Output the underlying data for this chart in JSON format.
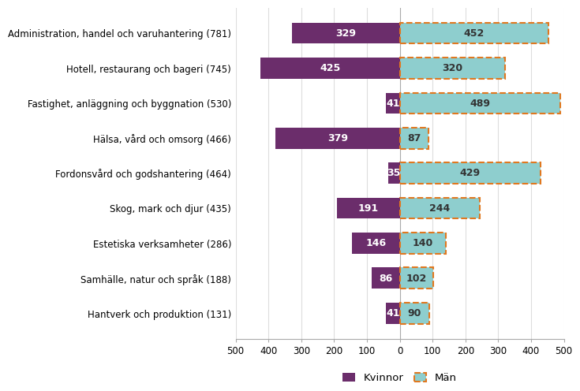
{
  "categories": [
    "Administration, handel och varuhantering (781)",
    "Hotell, restaurang och bageri (745)",
    "Fastighet, anläggning och byggnation (530)",
    "Hälsa, vård och omsorg (466)",
    "Fordonsvård och godshantering (464)",
    "Skog, mark och djur (435)",
    "Estetiska verksamheter (286)",
    "Samhälle, natur och språk (188)",
    "Hantverk och produktion (131)"
  ],
  "kvinnor": [
    329,
    425,
    41,
    379,
    35,
    191,
    146,
    86,
    41
  ],
  "man": [
    452,
    320,
    489,
    87,
    429,
    244,
    140,
    102,
    90
  ],
  "kvinnor_color": "#6b2d6b",
  "man_color": "#8ecece",
  "man_edge_color": "#e07820",
  "background_color": "#ffffff",
  "grid_color": "#dddddd",
  "spine_color": "#aaaaaa",
  "xlim": [
    -500,
    500
  ],
  "xticks": [
    -500,
    -400,
    -300,
    -200,
    -100,
    0,
    100,
    200,
    300,
    400,
    500
  ],
  "xticklabels": [
    "500",
    "400",
    "300",
    "200",
    "100",
    "0",
    "100",
    "200",
    "300",
    "400",
    "500"
  ],
  "legend_kvinnor": "Kvinnor",
  "legend_man": "Män",
  "bar_height": 0.6,
  "label_fontsize": 9,
  "tick_fontsize": 8.5,
  "legend_fontsize": 9.5,
  "ytick_fontsize": 8.5
}
